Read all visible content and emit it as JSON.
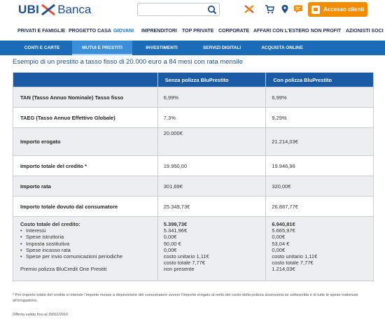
{
  "header": {
    "logo_ubi": "UBI",
    "logo_banca": "Banca",
    "search_placeholder": "",
    "access_label": "Accesso clienti",
    "brand_orange": "#f28c00",
    "brand_blue": "#1d4f91"
  },
  "main_nav": [
    "PRIVATI E FAMIGLIE",
    "PROGETTO CASA",
    "GIOVANI",
    "IMPRENDITORI",
    "TOP PRIVATE",
    "CORPORATE",
    "AFFARI CON L'ESTERO",
    "NON PROFIT",
    "AZIONISTI SOCI"
  ],
  "main_nav_active": "GIOVANI",
  "sub_nav": [
    "CONTI E CARTE",
    "MUTUI E PRESTITI",
    "INVESTIMENTI",
    "SERVIZI DIGITALI",
    "ACQUISTA ONLINE"
  ],
  "sub_nav_active": "MUTUI E PRESTITI",
  "intro": "Esempio di un prestito a tasso fisso di 20.000 euro a 84 mesi con rata mensile",
  "table": {
    "headers": [
      "",
      "Senza polizza BluPrestito",
      "Con polizza BluPrestito"
    ],
    "rows": [
      {
        "label": "TAN (Tasso Annuo Nominale) Tasso fisso",
        "senza": "6,99%",
        "con": "6,99%"
      },
      {
        "label": "TAEG (Tasso Annuo Effettivo Globale)",
        "senza": "7,3%",
        "con": "9,29%"
      },
      {
        "label": "Importo erogato",
        "senza": "20.000€",
        "con": "21.214,03€"
      },
      {
        "label": "Importo totale del credito *",
        "senza": "19.950,00",
        "con": "19.946,96"
      },
      {
        "label": "Importo rata",
        "senza": "301,69€",
        "con": "320,00€"
      },
      {
        "label": "Importo totale dovuto dal consumatore",
        "senza": "25.349,73€",
        "con": "26.887,77€"
      }
    ],
    "cost": {
      "title": "Costo totale del credito:",
      "items": [
        "Interessi",
        "Spese istruttoria",
        "Imposta sostitutiva",
        "Spese incasso rata",
        "Spese per invio comunicazioni periodiche"
      ],
      "premio": "Premio polizza BluCredit One Prestiti",
      "senza": [
        "5.399,73€",
        "5.341,96€",
        "0,00€",
        "50,00 €",
        "0,00€",
        "costo unitario 1,11€",
        "costo totale  7,77€",
        "non presente"
      ],
      "con": [
        "6.940,81€",
        "5.665,97€",
        "0,00€",
        "53,04 €",
        "0,00€",
        "costo unitario 1,11€",
        "costo totale  7,77€",
        "1.214,03€"
      ]
    }
  },
  "footnote": "* Per importo totale del credito si intende l'importo messo a disposizione del consumatore ovvero l'importo erogato al netto del costo della polizza accessoria se sottoscritta e di tutte le spese trattenute all'erogazione.",
  "validity": "Offerta valida fino al 29/02/2016"
}
